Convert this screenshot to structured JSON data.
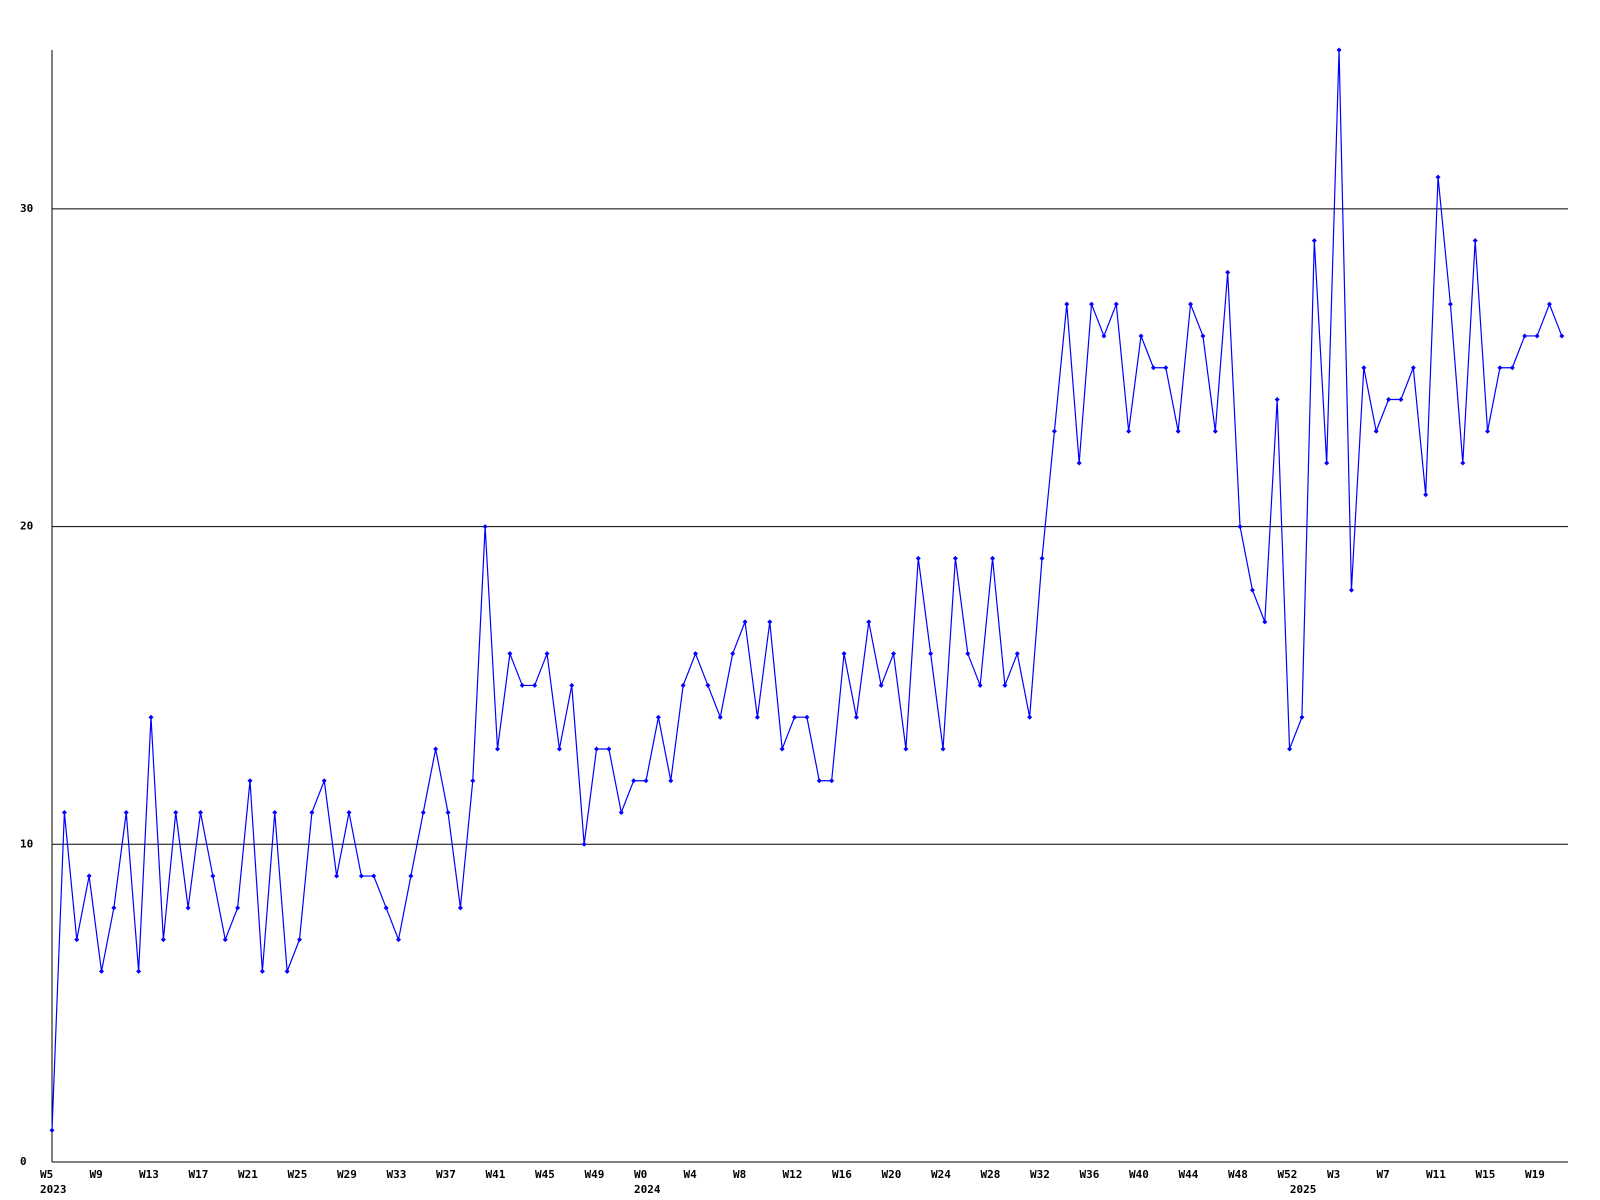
{
  "chart_data": {
    "type": "line",
    "categories": [
      "W5",
      null,
      null,
      null,
      "W9",
      null,
      null,
      null,
      "W13",
      null,
      null,
      null,
      "W17",
      null,
      null,
      null,
      "W21",
      null,
      null,
      null,
      "W25",
      null,
      null,
      null,
      "W29",
      null,
      null,
      null,
      "W33",
      null,
      null,
      null,
      "W37",
      null,
      null,
      null,
      "W41",
      null,
      null,
      null,
      "W45",
      null,
      null,
      null,
      "W49",
      null,
      null,
      null,
      "W0",
      null,
      null,
      null,
      "W4",
      null,
      null,
      null,
      "W8",
      null,
      null,
      null,
      "W12",
      null,
      null,
      null,
      "W16",
      null,
      null,
      null,
      "W20",
      null,
      null,
      null,
      "W24",
      null,
      null,
      null,
      "W28",
      null,
      null,
      null,
      "W32",
      null,
      null,
      null,
      "W36",
      null,
      null,
      null,
      "W40",
      null,
      null,
      null,
      "W44",
      null,
      null,
      null,
      "W48",
      null,
      null,
      null,
      "W52",
      null,
      null,
      null,
      "W3",
      null,
      null,
      null,
      "W7",
      null,
      null,
      null,
      "W11",
      null,
      null,
      null,
      "W15",
      null,
      null,
      null,
      "W19",
      null,
      null
    ],
    "category_years": [
      "2023",
      null,
      null,
      null,
      null,
      null,
      null,
      null,
      null,
      null,
      null,
      null,
      null,
      null,
      null,
      null,
      null,
      null,
      null,
      null,
      null,
      null,
      null,
      null,
      null,
      null,
      null,
      null,
      null,
      null,
      null,
      null,
      null,
      null,
      null,
      null,
      null,
      null,
      null,
      null,
      null,
      null,
      null,
      null,
      null,
      null,
      null,
      null,
      "2024",
      null,
      null,
      null,
      null,
      null,
      null,
      null,
      null,
      null,
      null,
      null,
      null,
      null,
      null,
      null,
      null,
      null,
      null,
      null,
      null,
      null,
      null,
      null,
      null,
      null,
      null,
      null,
      null,
      null,
      null,
      null,
      null,
      null,
      null,
      null,
      null,
      null,
      null,
      null,
      null,
      null,
      null,
      null,
      null,
      null,
      null,
      null,
      null,
      null,
      null,
      null,
      null,
      "2025",
      null,
      null,
      null,
      null,
      null,
      null,
      null,
      null,
      null,
      null,
      null,
      null,
      null,
      null,
      null,
      null,
      null,
      null,
      null,
      null,
      null
    ],
    "series": [
      {
        "color": "#0000ff",
        "values": [
          1,
          11,
          7,
          9,
          6,
          8,
          11,
          6,
          14,
          7,
          11,
          8,
          11,
          9,
          7,
          8,
          12,
          6,
          11,
          6,
          7,
          11,
          12,
          9,
          11,
          9,
          9,
          8,
          7,
          9,
          11,
          13,
          11,
          8,
          12,
          20,
          13,
          16,
          15,
          15,
          16,
          13,
          15,
          10,
          13,
          13,
          11,
          12,
          12,
          14,
          12,
          15,
          16,
          15,
          14,
          16,
          17,
          14,
          17,
          13,
          14,
          14,
          12,
          12,
          16,
          14,
          17,
          15,
          16,
          13,
          19,
          16,
          13,
          19,
          16,
          15,
          19,
          15,
          16,
          14,
          19,
          23,
          27,
          22,
          27,
          26,
          27,
          23,
          26,
          25,
          25,
          23,
          27,
          26,
          23,
          28,
          20,
          18,
          17,
          24,
          13,
          14,
          29,
          22,
          35,
          18,
          25,
          23,
          24,
          24,
          25,
          21,
          31,
          27,
          22,
          29,
          23,
          25,
          25,
          26,
          26,
          27,
          26
        ]
      }
    ],
    "ylim": [
      0,
      35
    ],
    "yticks": [
      0,
      10,
      20,
      30
    ],
    "grid": true
  }
}
